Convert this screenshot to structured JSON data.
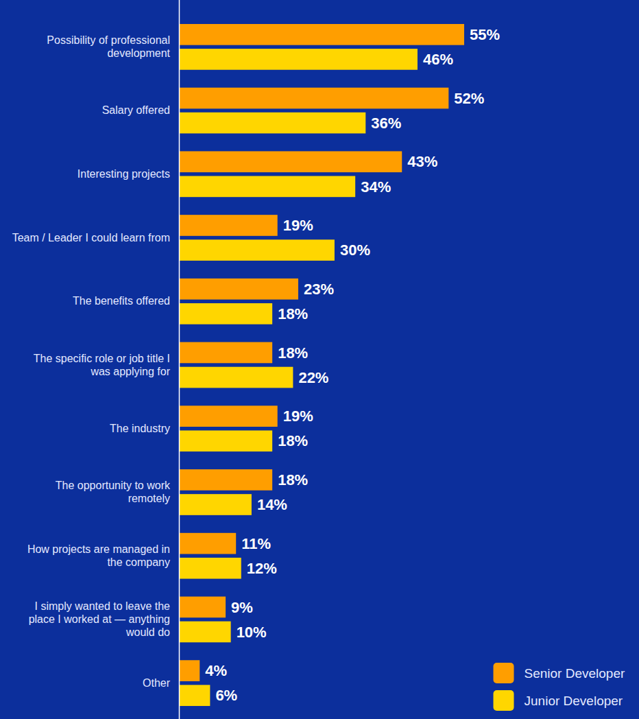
{
  "chart_data": {
    "type": "bar",
    "orientation": "horizontal",
    "categories": [
      "Possibility of professional development",
      "Salary offered",
      "Interesting projects",
      "Team / Leader I could learn from",
      "The benefits offered",
      "The specific role or job title I was applying for",
      "The industry",
      "The opportunity to work remotely",
      "How projects are managed in the company",
      "I simply wanted to leave the place I worked at — anything would do",
      "Other"
    ],
    "series": [
      {
        "name": "Senior Developer",
        "color": "#ff9e00",
        "values": [
          55,
          52,
          43,
          19,
          23,
          18,
          19,
          18,
          11,
          9,
          4
        ],
        "value_labels": [
          "55%",
          "52%",
          "43%",
          "19%",
          "23%",
          "18%",
          "19%",
          "18%",
          "11%",
          "9%",
          "4%"
        ]
      },
      {
        "name": "Junior Developer",
        "color": "#ffd600",
        "values": [
          46,
          36,
          34,
          30,
          18,
          22,
          18,
          14,
          12,
          10,
          6
        ],
        "value_labels": [
          "46%",
          "36%",
          "34%",
          "30%",
          "18%",
          "22%",
          "18%",
          "14%",
          "12%",
          "10%",
          "6%"
        ]
      }
    ],
    "xlim": [
      0,
      55
    ],
    "grid": false,
    "tick_labels": "y",
    "data_labels": true,
    "legend": "bottom-right"
  }
}
